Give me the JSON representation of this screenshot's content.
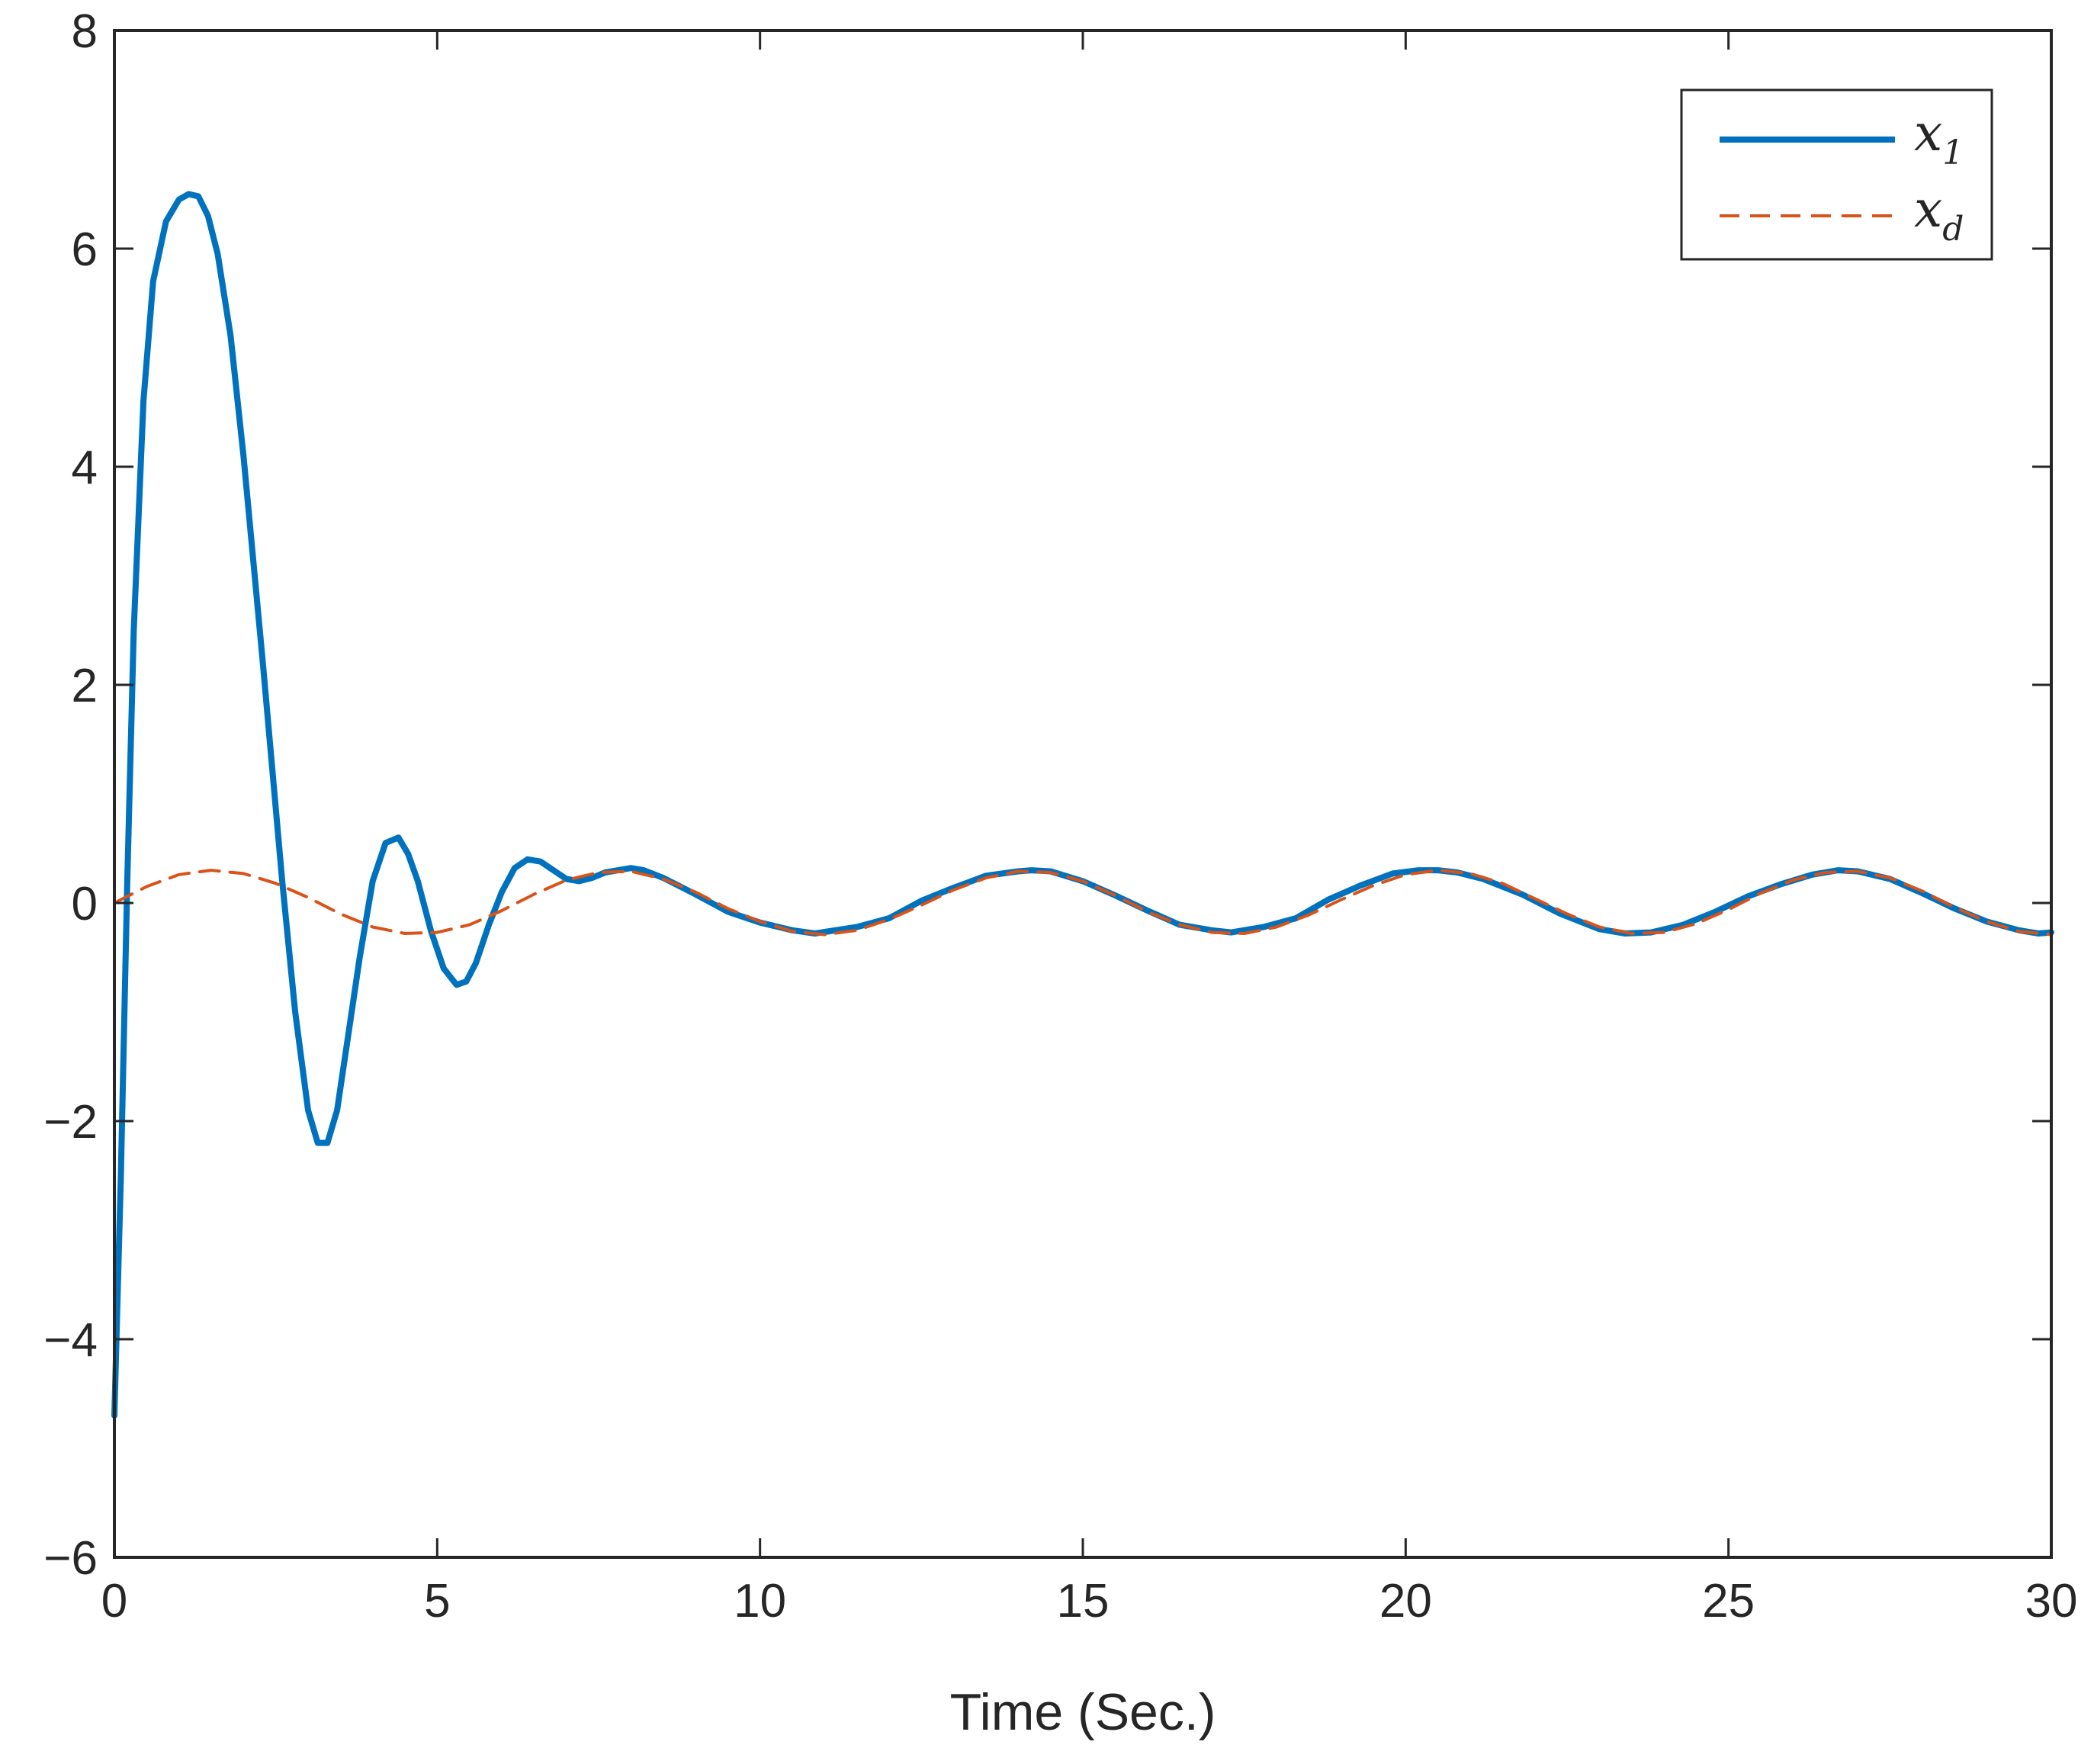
{
  "chart_data": {
    "type": "line",
    "title": "",
    "xlabel": "Time (Sec.)",
    "ylabel": "",
    "xlim": [
      0,
      30
    ],
    "ylim": [
      -6,
      8
    ],
    "xticks": [
      0,
      5,
      10,
      15,
      20,
      25,
      30
    ],
    "yticks": [
      -6,
      -4,
      -2,
      0,
      2,
      4,
      6,
      8
    ],
    "xtick_labels": [
      "0",
      "5",
      "10",
      "15",
      "20",
      "25",
      "30"
    ],
    "ytick_labels": [
      "−6",
      "−4",
      "−2",
      "0",
      "2",
      "4",
      "6",
      "8"
    ],
    "grid": false,
    "legend_position": "top-right",
    "series": [
      {
        "name": "x1",
        "legend_main": "x",
        "legend_sub": "1",
        "color": "#0072BD",
        "style": "solid",
        "x": [
          0,
          0.1,
          0.2,
          0.3,
          0.45,
          0.6,
          0.8,
          1.0,
          1.15,
          1.3,
          1.45,
          1.6,
          1.8,
          2.0,
          2.3,
          2.6,
          2.8,
          3.0,
          3.15,
          3.3,
          3.45,
          3.6,
          3.8,
          4.0,
          4.2,
          4.4,
          4.55,
          4.7,
          4.9,
          5.1,
          5.3,
          5.45,
          5.6,
          5.8,
          6.0,
          6.2,
          6.4,
          6.6,
          6.8,
          7.0,
          7.2,
          7.4,
          7.6,
          7.8,
          8.0,
          8.2,
          8.5,
          9.0,
          9.5,
          10.0,
          10.5,
          10.85,
          11.5,
          12.0,
          12.5,
          13.0,
          13.5,
          14.0,
          14.2,
          14.5,
          15.0,
          15.5,
          16.0,
          16.5,
          17.0,
          17.3,
          17.8,
          18.3,
          18.8,
          19.3,
          19.8,
          20.2,
          20.5,
          20.8,
          21.2,
          21.8,
          22.4,
          23.0,
          23.4,
          23.8,
          24.3,
          24.8,
          25.3,
          25.8,
          26.3,
          26.7,
          27.0,
          27.5,
          28.0,
          28.5,
          29.0,
          29.5,
          29.8,
          30.0
        ],
        "y": [
          -4.7,
          -2.5,
          0.2,
          2.5,
          4.6,
          5.7,
          6.25,
          6.45,
          6.5,
          6.48,
          6.3,
          5.95,
          5.2,
          4.1,
          2.2,
          0.2,
          -1.0,
          -1.9,
          -2.2,
          -2.2,
          -1.9,
          -1.3,
          -0.5,
          0.2,
          0.55,
          0.6,
          0.45,
          0.2,
          -0.25,
          -0.6,
          -0.75,
          -0.72,
          -0.55,
          -0.2,
          0.1,
          0.32,
          0.4,
          0.38,
          0.3,
          0.22,
          0.2,
          0.23,
          0.28,
          0.3,
          0.32,
          0.3,
          0.23,
          0.08,
          -0.08,
          -0.18,
          -0.25,
          -0.28,
          -0.22,
          -0.14,
          0.02,
          0.14,
          0.25,
          0.29,
          0.3,
          0.29,
          0.2,
          0.07,
          -0.07,
          -0.2,
          -0.25,
          -0.27,
          -0.22,
          -0.14,
          0.03,
          0.16,
          0.27,
          0.3,
          0.3,
          0.28,
          0.22,
          0.08,
          -0.1,
          -0.24,
          -0.28,
          -0.27,
          -0.2,
          -0.08,
          0.06,
          0.17,
          0.26,
          0.3,
          0.29,
          0.22,
          0.09,
          -0.05,
          -0.17,
          -0.25,
          -0.28,
          -0.27
        ]
      },
      {
        "name": "xd",
        "legend_main": "x",
        "legend_sub": "d",
        "color": "#D95319",
        "style": "dashed",
        "x": [
          0,
          0.5,
          1.0,
          1.5,
          2.0,
          2.5,
          3.0,
          3.5,
          4.0,
          4.5,
          5.0,
          5.5,
          6.0,
          6.5,
          7.0,
          7.5,
          8.0,
          8.5,
          9.0,
          9.5,
          10.0,
          10.5,
          11.0,
          11.5,
          12.0,
          12.5,
          13.0,
          13.5,
          14.0,
          14.5,
          15.0,
          15.5,
          16.0,
          16.5,
          17.0,
          17.5,
          18.0,
          18.5,
          19.0,
          19.5,
          20.0,
          20.5,
          21.0,
          21.5,
          22.0,
          22.5,
          23.0,
          23.5,
          24.0,
          24.5,
          25.0,
          25.5,
          26.0,
          26.5,
          27.0,
          27.5,
          28.0,
          28.5,
          29.0,
          29.5,
          30.0
        ],
        "y": [
          0,
          0.15,
          0.26,
          0.3,
          0.27,
          0.18,
          0.05,
          -0.1,
          -0.22,
          -0.28,
          -0.27,
          -0.2,
          -0.07,
          0.08,
          0.21,
          0.28,
          0.29,
          0.22,
          0.1,
          -0.05,
          -0.17,
          -0.26,
          -0.29,
          -0.25,
          -0.15,
          -0.02,
          0.12,
          0.23,
          0.29,
          0.28,
          0.2,
          0.07,
          -0.08,
          -0.2,
          -0.27,
          -0.28,
          -0.22,
          -0.11,
          0.03,
          0.16,
          0.26,
          0.3,
          0.27,
          0.18,
          0.04,
          -0.1,
          -0.22,
          -0.28,
          -0.27,
          -0.19,
          -0.06,
          0.09,
          0.21,
          0.28,
          0.29,
          0.23,
          0.11,
          -0.04,
          -0.17,
          -0.26,
          -0.29
        ]
      }
    ]
  }
}
